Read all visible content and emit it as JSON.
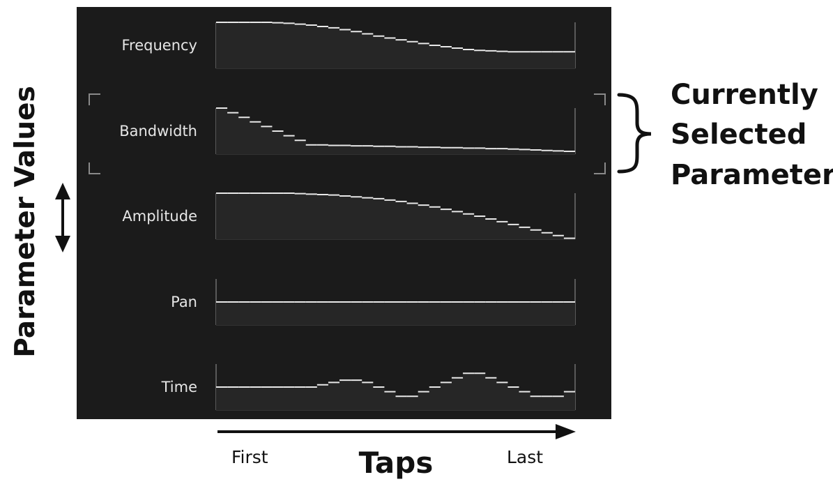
{
  "panel": {
    "background": "#1b1b1b",
    "trace_color": "#e8e8e8",
    "frame_color": "#5a5a5a",
    "selected_bracket_color": "#8a8a8a"
  },
  "parameters": [
    {
      "label": "Frequency",
      "selected": false,
      "values": [
        1.0,
        1.0,
        1.0,
        1.0,
        1.0,
        0.99,
        0.98,
        0.96,
        0.94,
        0.91,
        0.88,
        0.84,
        0.8,
        0.75,
        0.7,
        0.66,
        0.62,
        0.58,
        0.54,
        0.5,
        0.47,
        0.44,
        0.41,
        0.39,
        0.38,
        0.37,
        0.36,
        0.36,
        0.36,
        0.36,
        0.36,
        0.36
      ]
    },
    {
      "label": "Bandwidth",
      "selected": true,
      "values": [
        1.0,
        0.9,
        0.8,
        0.7,
        0.6,
        0.5,
        0.4,
        0.3,
        0.2,
        0.2,
        0.19,
        0.19,
        0.18,
        0.18,
        0.17,
        0.17,
        0.16,
        0.16,
        0.15,
        0.15,
        0.14,
        0.14,
        0.13,
        0.13,
        0.12,
        0.12,
        0.11,
        0.1,
        0.09,
        0.08,
        0.07,
        0.06
      ]
    },
    {
      "label": "Amplitude",
      "selected": false,
      "values": [
        1.0,
        1.0,
        1.0,
        1.0,
        1.0,
        1.0,
        1.0,
        0.99,
        0.98,
        0.97,
        0.96,
        0.94,
        0.92,
        0.9,
        0.88,
        0.85,
        0.82,
        0.78,
        0.74,
        0.7,
        0.65,
        0.6,
        0.55,
        0.5,
        0.44,
        0.38,
        0.32,
        0.26,
        0.2,
        0.14,
        0.08,
        0.02
      ]
    },
    {
      "label": "Pan",
      "selected": false,
      "values": [
        0.5,
        0.5,
        0.5,
        0.5,
        0.5,
        0.5,
        0.5,
        0.5,
        0.5,
        0.5,
        0.5,
        0.5,
        0.5,
        0.5,
        0.5,
        0.5,
        0.5,
        0.5,
        0.5,
        0.5,
        0.5,
        0.5,
        0.5,
        0.5,
        0.5,
        0.5,
        0.5,
        0.5,
        0.5,
        0.5,
        0.5,
        0.5
      ]
    },
    {
      "label": "Time",
      "selected": false,
      "values": [
        0.5,
        0.5,
        0.5,
        0.5,
        0.5,
        0.5,
        0.5,
        0.5,
        0.5,
        0.55,
        0.6,
        0.65,
        0.65,
        0.6,
        0.5,
        0.4,
        0.3,
        0.3,
        0.4,
        0.5,
        0.6,
        0.7,
        0.8,
        0.8,
        0.7,
        0.6,
        0.5,
        0.4,
        0.3,
        0.3,
        0.3,
        0.4
      ]
    }
  ],
  "annotations": {
    "y_axis_label": "Parameter Values",
    "x_axis_label": "Taps",
    "x_start": "First",
    "x_end": "Last",
    "selected_note": [
      "Currently",
      "Selected",
      "Parameter"
    ]
  }
}
